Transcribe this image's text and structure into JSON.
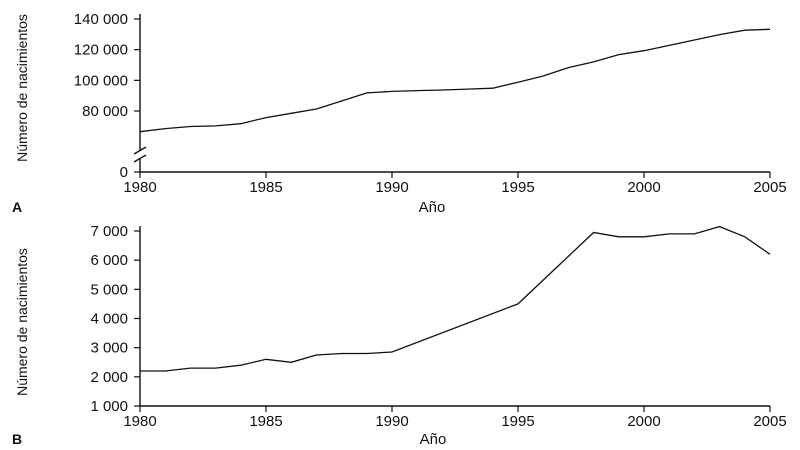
{
  "chart_data": [
    {
      "type": "line",
      "panel_label": "A",
      "xlabel": "Año",
      "ylabel": "Número de nacimientos",
      "x_ticks": [
        "1980",
        "1985",
        "1990",
        "1995",
        "2000",
        "2005"
      ],
      "y_ticks": [
        {
          "value": 0,
          "label": "0"
        },
        {
          "value": 80000,
          "label": "80 000"
        },
        {
          "value": 100000,
          "label": "100 000"
        },
        {
          "value": 120000,
          "label": "120 000"
        },
        {
          "value": 140000,
          "label": "140 000"
        }
      ],
      "xlim": [
        1980,
        2005
      ],
      "ylim": [
        55000,
        140000
      ],
      "axis_break": true,
      "series": [
        {
          "x": [
            1980,
            1981,
            1982,
            1983,
            1984,
            1985,
            1986,
            1987,
            1988,
            1989,
            1990,
            1991,
            1992,
            1993,
            1994,
            1995,
            1996,
            1997,
            1998,
            1999,
            2000,
            2001,
            2002,
            2003,
            2004,
            2005
          ],
          "values": [
            66500,
            68500,
            69900,
            70300,
            71700,
            75700,
            78500,
            81300,
            86500,
            91800,
            92800,
            93300,
            93700,
            94300,
            94900,
            98800,
            102800,
            108300,
            112000,
            116800,
            119300,
            122800,
            126300,
            129800,
            132700,
            133300
          ]
        }
      ]
    },
    {
      "type": "line",
      "panel_label": "B",
      "xlabel": "Año",
      "ylabel": "Número de nacimientos",
      "x_ticks": [
        "1980",
        "1985",
        "1990",
        "1995",
        "2000",
        "2005"
      ],
      "y_ticks": [
        {
          "value": 1000,
          "label": "1 000"
        },
        {
          "value": 2000,
          "label": "2 000"
        },
        {
          "value": 3000,
          "label": "3 000"
        },
        {
          "value": 4000,
          "label": "4 000"
        },
        {
          "value": 5000,
          "label": "5 000"
        },
        {
          "value": 6000,
          "label": "6 000"
        },
        {
          "value": 7000,
          "label": "7 000"
        }
      ],
      "xlim": [
        1980,
        2005
      ],
      "ylim": [
        1000,
        7000
      ],
      "axis_break": false,
      "series": [
        {
          "x": [
            1980,
            1981,
            1982,
            1983,
            1984,
            1985,
            1986,
            1987,
            1988,
            1989,
            1990,
            1995,
            1998,
            1999,
            2000,
            2001,
            2002,
            2003,
            2004,
            2005
          ],
          "values": [
            2200,
            2200,
            2300,
            2300,
            2400,
            2600,
            2500,
            2750,
            2800,
            2800,
            2850,
            4500,
            6950,
            6800,
            6800,
            6900,
            6900,
            7150,
            6800,
            6200
          ]
        }
      ]
    }
  ]
}
